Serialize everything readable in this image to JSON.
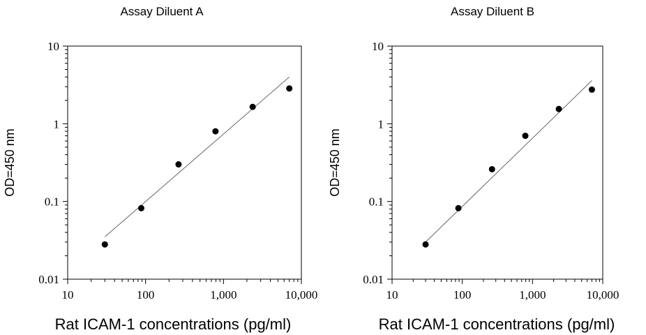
{
  "chart_data": [
    {
      "type": "scatter",
      "title": "Assay Diluent A",
      "xlabel": "Rat ICAM-1 concentrations (pg/ml)",
      "ylabel": "OD=450 nm",
      "xscale": "log",
      "yscale": "log",
      "xlim": [
        10,
        10000
      ],
      "ylim": [
        0.01,
        10
      ],
      "x_ticks": [
        10,
        100,
        1000,
        10000
      ],
      "x_tick_labels": [
        "10",
        "100",
        "1,000",
        "10,000"
      ],
      "y_ticks": [
        0.01,
        0.1,
        1,
        10
      ],
      "y_tick_labels": [
        "0.01",
        "0.1",
        "1",
        "10"
      ],
      "points": [
        {
          "x": 30,
          "y": 0.028
        },
        {
          "x": 88,
          "y": 0.082
        },
        {
          "x": 265,
          "y": 0.3
        },
        {
          "x": 790,
          "y": 0.8
        },
        {
          "x": 2370,
          "y": 1.65
        },
        {
          "x": 7000,
          "y": 2.85
        }
      ],
      "fit_line": [
        {
          "x": 30,
          "y": 0.035
        },
        {
          "x": 7000,
          "y": 4.0
        }
      ]
    },
    {
      "type": "scatter",
      "title": "Assay Diluent B",
      "xlabel": "Rat ICAM-1 concentrations (pg/ml)",
      "ylabel": "OD=450 nm",
      "xscale": "log",
      "yscale": "log",
      "xlim": [
        10,
        10000
      ],
      "ylim": [
        0.01,
        10
      ],
      "x_ticks": [
        10,
        100,
        1000,
        10000
      ],
      "x_tick_labels": [
        "10",
        "100",
        "1,000",
        "10,000"
      ],
      "y_ticks": [
        0.01,
        0.1,
        1,
        10
      ],
      "y_tick_labels": [
        "0.01",
        "0.1",
        "1",
        "10"
      ],
      "points": [
        {
          "x": 30,
          "y": 0.028
        },
        {
          "x": 88,
          "y": 0.082
        },
        {
          "x": 265,
          "y": 0.26
        },
        {
          "x": 790,
          "y": 0.7
        },
        {
          "x": 2370,
          "y": 1.55
        },
        {
          "x": 7000,
          "y": 2.75
        }
      ],
      "fit_line": [
        {
          "x": 30,
          "y": 0.03
        },
        {
          "x": 7000,
          "y": 3.6
        }
      ]
    }
  ]
}
